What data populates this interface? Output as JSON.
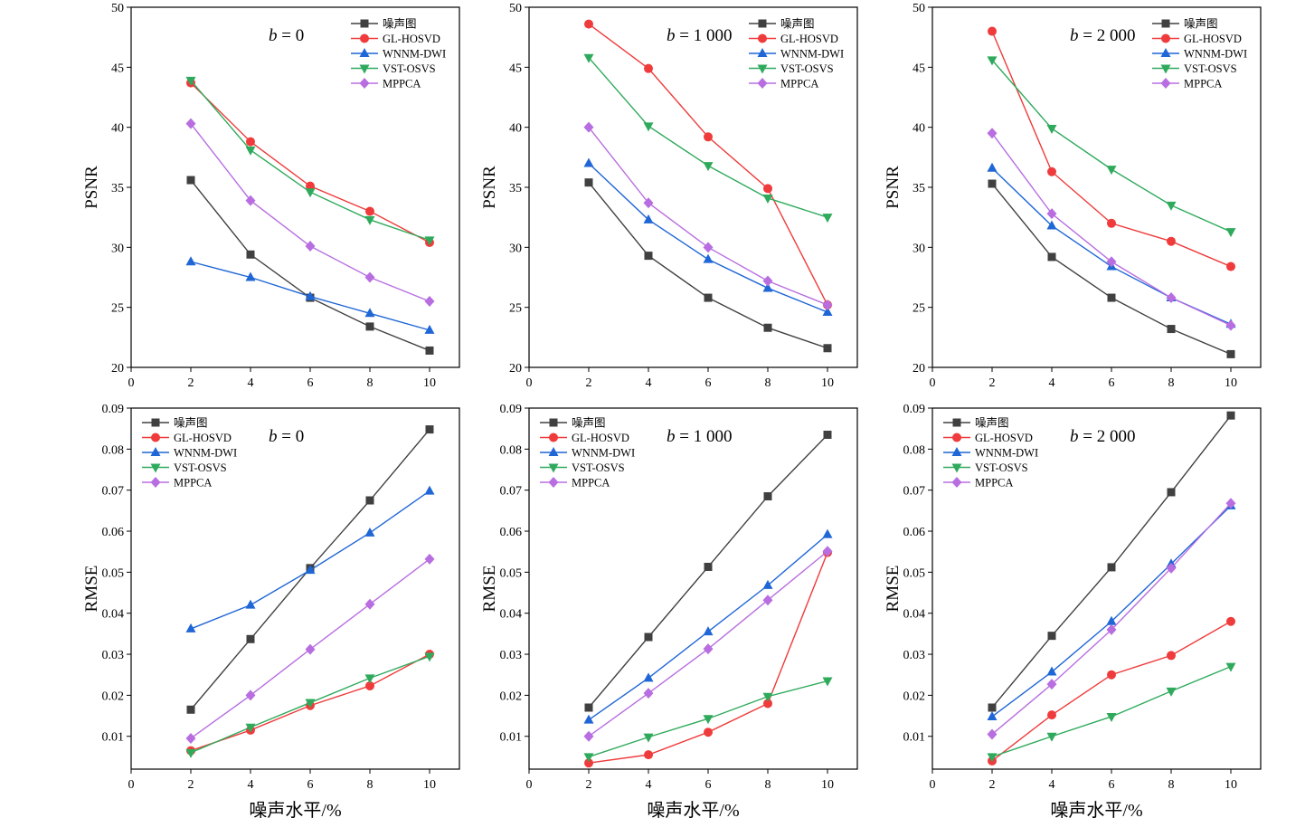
{
  "colors": {
    "噪声图": "#404040",
    "GL-HOSVD": "#ef3b3b",
    "WNNM-DWI": "#1f66d6",
    "VST-OSVS": "#2faa5c",
    "MPPCA": "#b86ee0"
  },
  "markers": {
    "噪声图": "square",
    "GL-HOSVD": "circle",
    "WNNM-DWI": "triangle-up",
    "VST-OSVS": "triangle-down",
    "MPPCA": "diamond"
  },
  "shared_xlabel": "噪声水平/%",
  "chart_data": [
    {
      "type": "line",
      "title_var": "b",
      "title_eq": " = ",
      "title_val": "0",
      "ylabel": "PSNR",
      "xlim": [
        0,
        11
      ],
      "ylim": [
        20,
        50
      ],
      "xticks": [
        0,
        2,
        4,
        6,
        8,
        10
      ],
      "yticks": [
        20,
        25,
        30,
        35,
        40,
        45,
        50
      ],
      "ytick_labels": [
        "20",
        "25",
        "30",
        "35",
        "40",
        "45",
        "50"
      ],
      "legend_position": "top-right",
      "x": [
        2,
        4,
        6,
        8,
        10
      ],
      "series": [
        {
          "name": "噪声图",
          "values": [
            35.6,
            29.4,
            25.8,
            23.4,
            21.4
          ]
        },
        {
          "name": "GL-HOSVD",
          "values": [
            43.7,
            38.8,
            35.1,
            33.0,
            30.4
          ]
        },
        {
          "name": "WNNM-DWI",
          "values": [
            28.8,
            27.5,
            25.9,
            24.5,
            23.1
          ]
        },
        {
          "name": "VST-OSVS",
          "values": [
            43.9,
            38.1,
            34.6,
            32.3,
            30.6
          ]
        },
        {
          "name": "MPPCA",
          "values": [
            40.3,
            33.9,
            30.1,
            27.5,
            25.5
          ]
        }
      ]
    },
    {
      "type": "line",
      "title_var": "b",
      "title_eq": " = ",
      "title_val": "1 000",
      "ylabel": "PSNR",
      "xlim": [
        0,
        11
      ],
      "ylim": [
        20,
        50
      ],
      "xticks": [
        0,
        2,
        4,
        6,
        8,
        10
      ],
      "yticks": [
        20,
        25,
        30,
        35,
        40,
        45,
        50
      ],
      "ytick_labels": [
        "20",
        "25",
        "30",
        "35",
        "40",
        "45",
        "50"
      ],
      "legend_position": "top-right",
      "x": [
        2,
        4,
        6,
        8,
        10
      ],
      "series": [
        {
          "name": "噪声图",
          "values": [
            35.4,
            29.3,
            25.8,
            23.3,
            21.6
          ]
        },
        {
          "name": "GL-HOSVD",
          "values": [
            48.6,
            44.9,
            39.2,
            34.9,
            25.2
          ]
        },
        {
          "name": "WNNM-DWI",
          "values": [
            37.0,
            32.3,
            29.0,
            26.6,
            24.6
          ]
        },
        {
          "name": "VST-OSVS",
          "values": [
            45.8,
            40.1,
            36.8,
            34.1,
            32.5
          ]
        },
        {
          "name": "MPPCA",
          "values": [
            40.0,
            33.7,
            30.0,
            27.2,
            25.2
          ]
        }
      ]
    },
    {
      "type": "line",
      "title_var": "b",
      "title_eq": " = ",
      "title_val": "2 000",
      "ylabel": "PSNR",
      "xlim": [
        0,
        11
      ],
      "ylim": [
        20,
        50
      ],
      "xticks": [
        0,
        2,
        4,
        6,
        8,
        10
      ],
      "yticks": [
        20,
        25,
        30,
        35,
        40,
        45,
        50
      ],
      "ytick_labels": [
        "20",
        "25",
        "30",
        "35",
        "40",
        "45",
        "50"
      ],
      "legend_position": "top-right",
      "x": [
        2,
        4,
        6,
        8,
        10
      ],
      "series": [
        {
          "name": "噪声图",
          "values": [
            35.3,
            29.2,
            25.8,
            23.2,
            21.1
          ]
        },
        {
          "name": "GL-HOSVD",
          "values": [
            48.0,
            36.3,
            32.0,
            30.5,
            28.4
          ]
        },
        {
          "name": "WNNM-DWI",
          "values": [
            36.6,
            31.8,
            28.4,
            25.8,
            23.6
          ]
        },
        {
          "name": "VST-OSVS",
          "values": [
            45.6,
            39.9,
            36.5,
            33.5,
            31.3
          ]
        },
        {
          "name": "MPPCA",
          "values": [
            39.5,
            32.8,
            28.8,
            25.8,
            23.5
          ]
        }
      ]
    },
    {
      "type": "line",
      "title_var": "b",
      "title_eq": " = ",
      "title_val": "0",
      "ylabel": "RMSE",
      "xlabel": "噪声水平/%",
      "xlim": [
        0,
        11
      ],
      "ylim": [
        0.002,
        0.09
      ],
      "xticks": [
        0,
        2,
        4,
        6,
        8,
        10
      ],
      "yticks": [
        0.01,
        0.02,
        0.03,
        0.04,
        0.05,
        0.06,
        0.07,
        0.08,
        0.09
      ],
      "ytick_labels": [
        "0.01",
        "0.02",
        "0.03",
        "0.04",
        "0.05",
        "0.06",
        "0.07",
        "0.08",
        "0.09"
      ],
      "legend_position": "top-left",
      "x": [
        2,
        4,
        6,
        8,
        10
      ],
      "series": [
        {
          "name": "噪声图",
          "values": [
            0.0165,
            0.0337,
            0.051,
            0.0675,
            0.0848
          ]
        },
        {
          "name": "GL-HOSVD",
          "values": [
            0.0065,
            0.0115,
            0.0175,
            0.0223,
            0.03
          ]
        },
        {
          "name": "WNNM-DWI",
          "values": [
            0.0362,
            0.042,
            0.0505,
            0.0596,
            0.0698
          ]
        },
        {
          "name": "VST-OSVS",
          "values": [
            0.006,
            0.0122,
            0.0182,
            0.0242,
            0.0295
          ]
        },
        {
          "name": "MPPCA",
          "values": [
            0.0095,
            0.02,
            0.0312,
            0.0422,
            0.0532
          ]
        }
      ]
    },
    {
      "type": "line",
      "title_var": "b",
      "title_eq": " = ",
      "title_val": "1 000",
      "ylabel": "RMSE",
      "xlabel": "噪声水平/%",
      "xlim": [
        0,
        11
      ],
      "ylim": [
        0.002,
        0.09
      ],
      "xticks": [
        0,
        2,
        4,
        6,
        8,
        10
      ],
      "yticks": [
        0.01,
        0.02,
        0.03,
        0.04,
        0.05,
        0.06,
        0.07,
        0.08,
        0.09
      ],
      "ytick_labels": [
        "0.01",
        "0.02",
        "0.03",
        "0.04",
        "0.05",
        "0.06",
        "0.07",
        "0.08",
        "0.09"
      ],
      "legend_position": "top-left",
      "x": [
        2,
        4,
        6,
        8,
        10
      ],
      "series": [
        {
          "name": "噪声图",
          "values": [
            0.017,
            0.0342,
            0.0513,
            0.0685,
            0.0835
          ]
        },
        {
          "name": "GL-HOSVD",
          "values": [
            0.0035,
            0.0055,
            0.011,
            0.018,
            0.0548
          ]
        },
        {
          "name": "WNNM-DWI",
          "values": [
            0.014,
            0.0242,
            0.0355,
            0.0468,
            0.0592
          ]
        },
        {
          "name": "VST-OSVS",
          "values": [
            0.005,
            0.0098,
            0.0143,
            0.0197,
            0.0235
          ]
        },
        {
          "name": "MPPCA",
          "values": [
            0.01,
            0.0205,
            0.0313,
            0.0432,
            0.0551
          ]
        }
      ]
    },
    {
      "type": "line",
      "title_var": "b",
      "title_eq": " = ",
      "title_val": "2 000",
      "ylabel": "RMSE",
      "xlabel": "噪声水平/%",
      "xlim": [
        0,
        11
      ],
      "ylim": [
        0.002,
        0.09
      ],
      "xticks": [
        0,
        2,
        4,
        6,
        8,
        10
      ],
      "yticks": [
        0.01,
        0.02,
        0.03,
        0.04,
        0.05,
        0.06,
        0.07,
        0.08,
        0.09
      ],
      "ytick_labels": [
        "0.01",
        "0.02",
        "0.03",
        "0.04",
        "0.05",
        "0.06",
        "0.07",
        "0.08",
        "0.09"
      ],
      "legend_position": "top-left",
      "x": [
        2,
        4,
        6,
        8,
        10
      ],
      "series": [
        {
          "name": "噪声图",
          "values": [
            0.017,
            0.0345,
            0.0512,
            0.0695,
            0.0882
          ]
        },
        {
          "name": "GL-HOSVD",
          "values": [
            0.004,
            0.0152,
            0.025,
            0.0297,
            0.038
          ]
        },
        {
          "name": "WNNM-DWI",
          "values": [
            0.0148,
            0.0257,
            0.038,
            0.052,
            0.0662
          ]
        },
        {
          "name": "VST-OSVS",
          "values": [
            0.005,
            0.01,
            0.0148,
            0.021,
            0.027
          ]
        },
        {
          "name": "MPPCA",
          "values": [
            0.0105,
            0.0227,
            0.036,
            0.051,
            0.0668
          ]
        }
      ]
    }
  ]
}
